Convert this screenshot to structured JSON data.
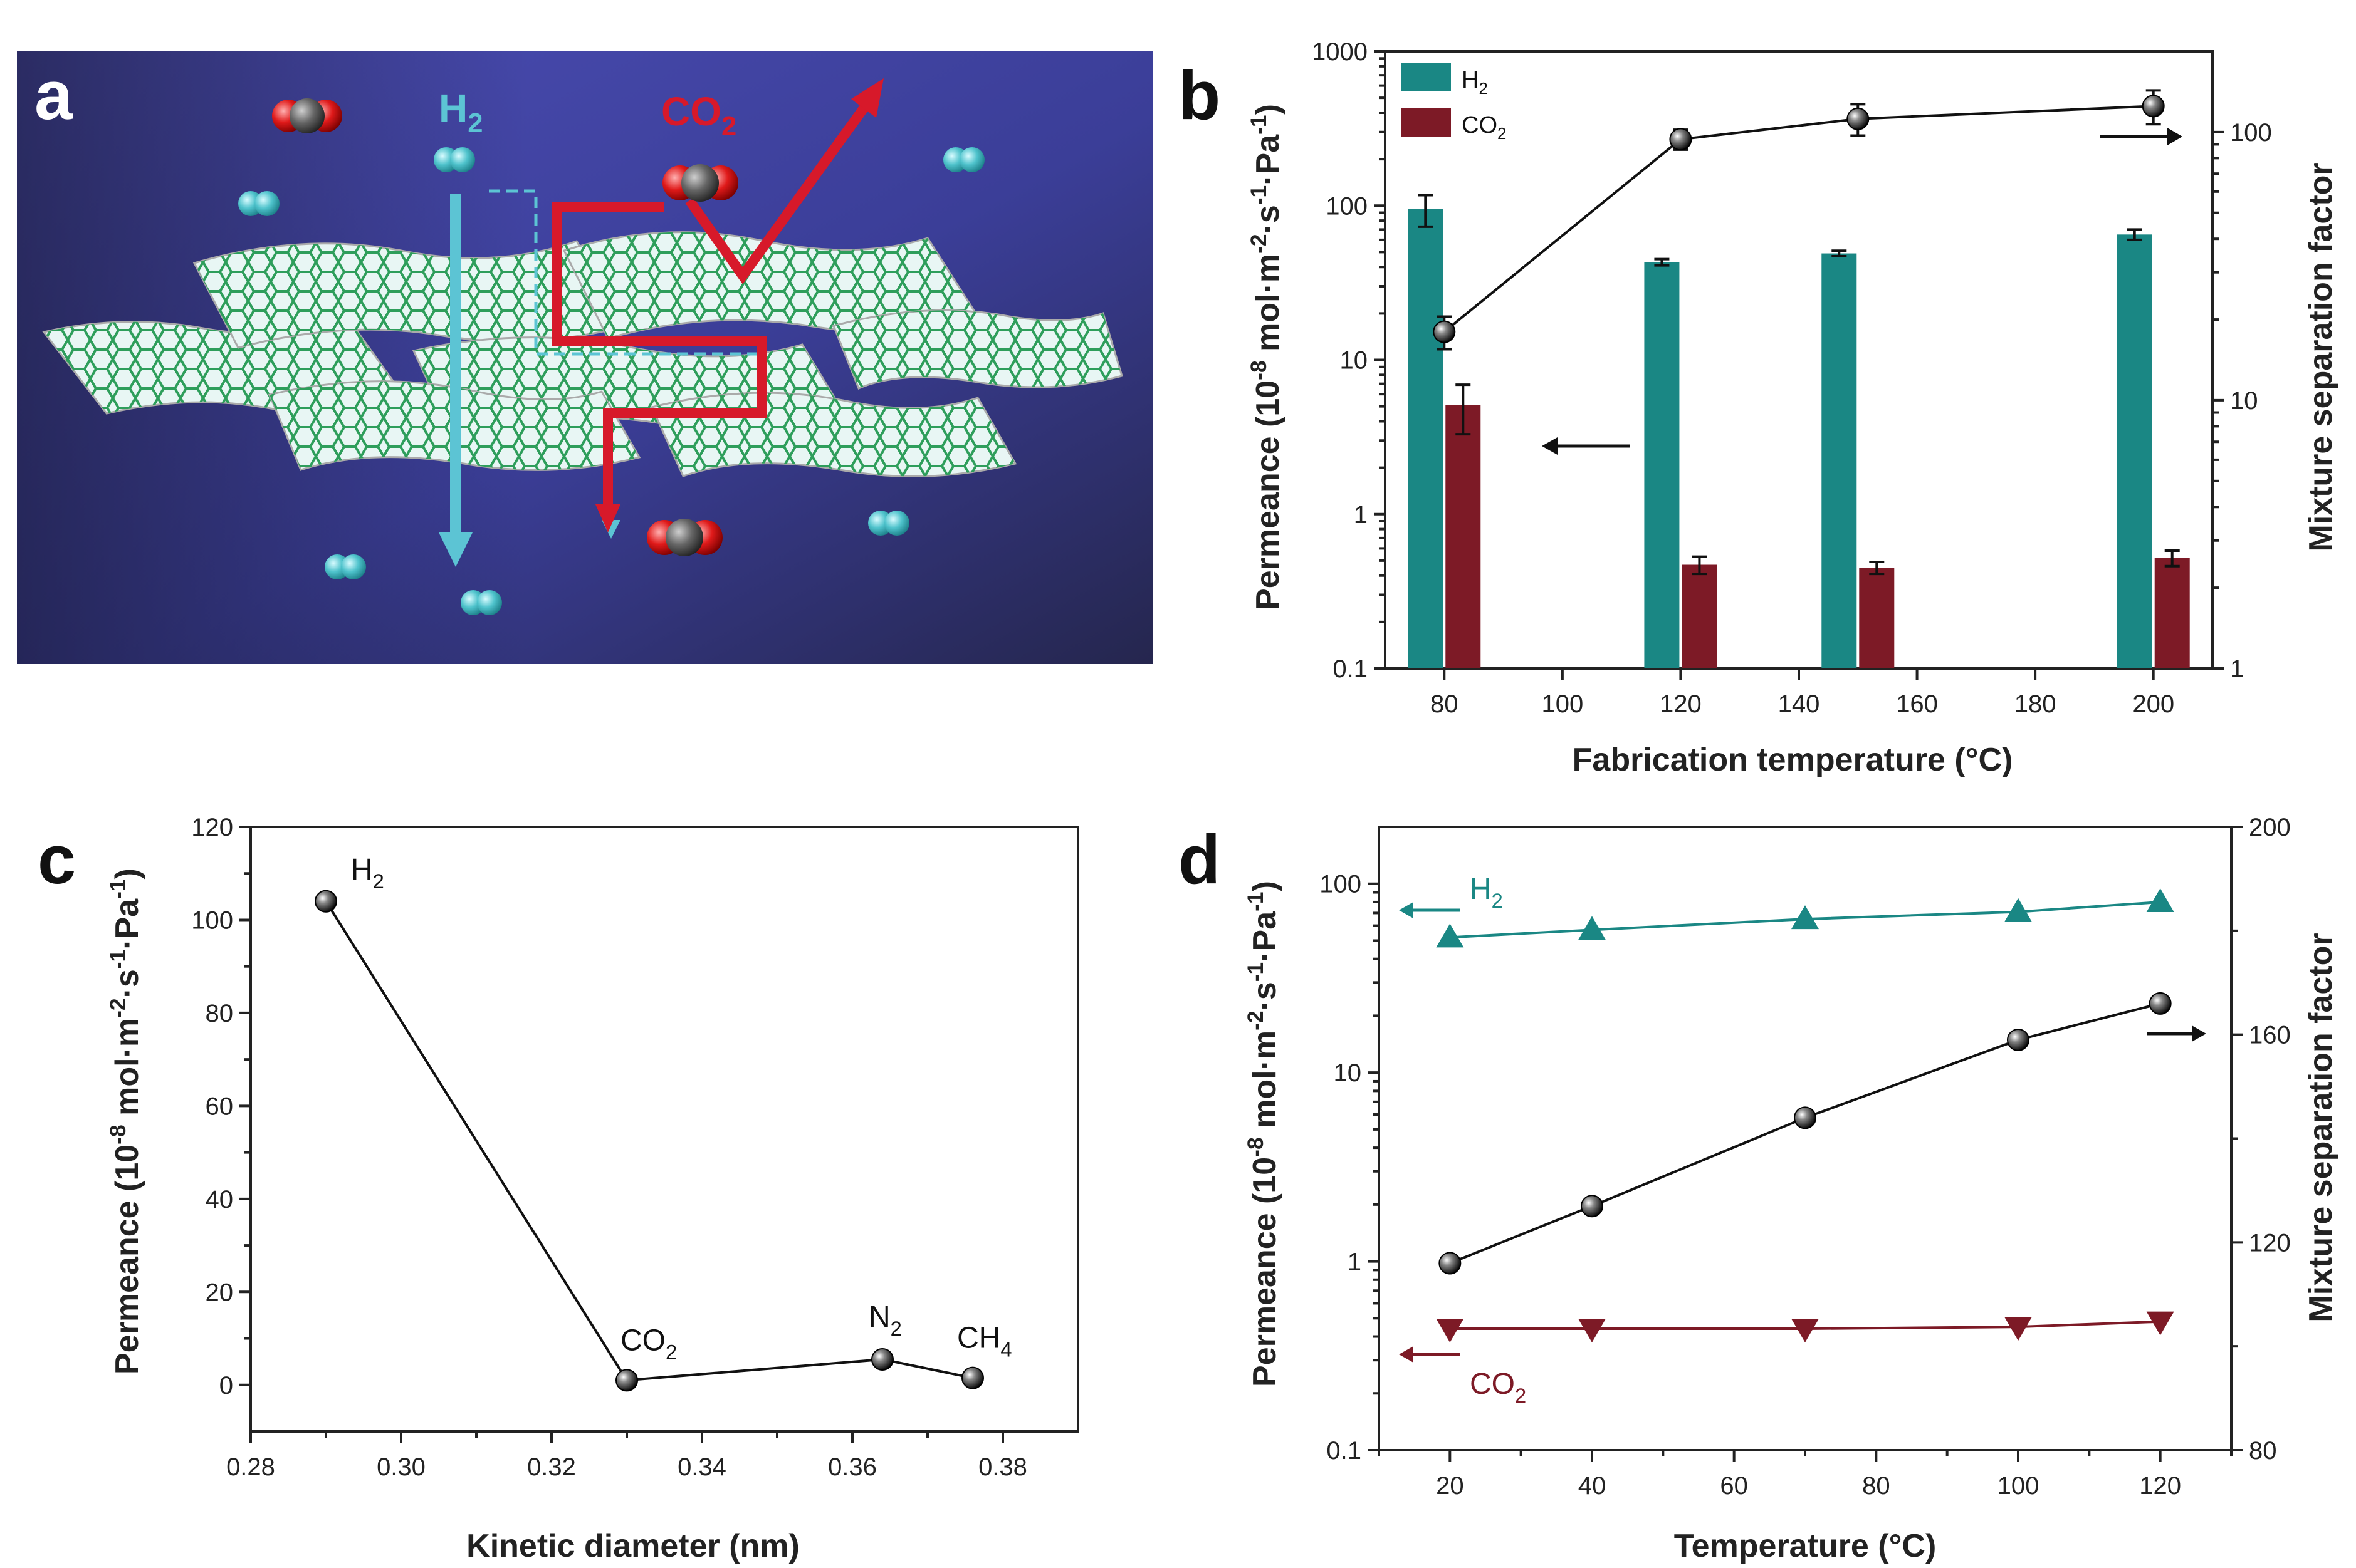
{
  "chart_data": [
    {
      "panel": "a",
      "type": "other",
      "labels": [
        "H2",
        "CO2"
      ],
      "colors": {
        "background": "#3d3fa0",
        "h2": "#5cc4d4",
        "co2": "#d7192a",
        "graphene": "#2e9e5b"
      }
    },
    {
      "panel": "b",
      "type": "bar",
      "title": "",
      "xlabel": "Fabrication temperature (°C)",
      "ylabel": "Permeance (10-8 mol·m-2·s-1·Pa-1)",
      "y2label": "Mixture separation factor",
      "xlim": [
        70,
        210
      ],
      "xticks": [
        80,
        100,
        120,
        140,
        160,
        180,
        200
      ],
      "ylim": [
        0.1,
        1000
      ],
      "yscale": "log",
      "yticks": [
        "0.1",
        "1",
        "10",
        "100",
        "1000"
      ],
      "y2lim": [
        1,
        200
      ],
      "y2scale": "log",
      "y2ticks": [
        "1",
        "10",
        "100"
      ],
      "categories": [
        80,
        120,
        150,
        200
      ],
      "series": [
        {
          "name": "H2",
          "values": [
            95,
            43,
            49,
            65
          ],
          "errors": [
            22,
            2,
            2,
            5
          ],
          "color": "#1a8784"
        },
        {
          "name": "CO2",
          "values": [
            5.1,
            0.47,
            0.45,
            0.52
          ],
          "errors": [
            1.8,
            0.06,
            0.04,
            0.06
          ],
          "color": "#7d1a26"
        },
        {
          "name": "Mixture separation factor",
          "axis": "right",
          "x": [
            80,
            120,
            150,
            200
          ],
          "values": [
            18,
            94,
            112,
            125
          ],
          "errors": [
            2.5,
            8,
            15,
            18
          ]
        }
      ],
      "legend": [
        "H2",
        "CO2"
      ],
      "annotations": [
        "arrow-left",
        "arrow-right"
      ]
    },
    {
      "panel": "c",
      "type": "line",
      "xlabel": "Kinetic diameter (nm)",
      "ylabel": "Permeance (10-8 mol·m-2·s-1·Pa-1)",
      "xlim": [
        0.28,
        0.39
      ],
      "xticks": [
        "0.28",
        "0.30",
        "0.32",
        "0.34",
        "0.36",
        "0.38"
      ],
      "ylim": [
        -10,
        120
      ],
      "yticks": [
        0,
        20,
        40,
        60,
        80,
        100,
        120
      ],
      "x": [
        0.29,
        0.33,
        0.364,
        0.376
      ],
      "values": [
        104,
        1,
        5.5,
        1.5
      ],
      "point_labels": [
        "H2",
        "CO2",
        "N2",
        "CH4"
      ]
    },
    {
      "panel": "d",
      "type": "line",
      "xlabel": "Temperature (°C)",
      "ylabel": "Permeance (10-8 mol·m-2·s-1·Pa-1)",
      "y2label": "Mixture separation factor",
      "xlim": [
        10,
        130
      ],
      "xticks": [
        20,
        40,
        60,
        80,
        100,
        120
      ],
      "ylim": [
        0.1,
        200
      ],
      "yscale": "log",
      "yticks": [
        "0.1",
        "1",
        "10",
        "100"
      ],
      "y2lim": [
        80,
        200
      ],
      "y2ticks": [
        80,
        120,
        160,
        200
      ],
      "x": [
        20,
        40,
        70,
        100,
        120
      ],
      "series": [
        {
          "name": "H2",
          "values": [
            52,
            57,
            65,
            71,
            80
          ],
          "color": "#1a8784",
          "marker": "triangle-up"
        },
        {
          "name": "CO2",
          "values": [
            0.44,
            0.44,
            0.44,
            0.45,
            0.48
          ],
          "color": "#7d1a26",
          "marker": "triangle-down"
        },
        {
          "name": "Mixture separation factor",
          "axis": "right",
          "values": [
            116,
            127,
            144,
            159,
            166
          ],
          "color": "#111111",
          "marker": "sphere"
        }
      ],
      "series_labels": [
        "H2",
        "CO2"
      ]
    }
  ]
}
